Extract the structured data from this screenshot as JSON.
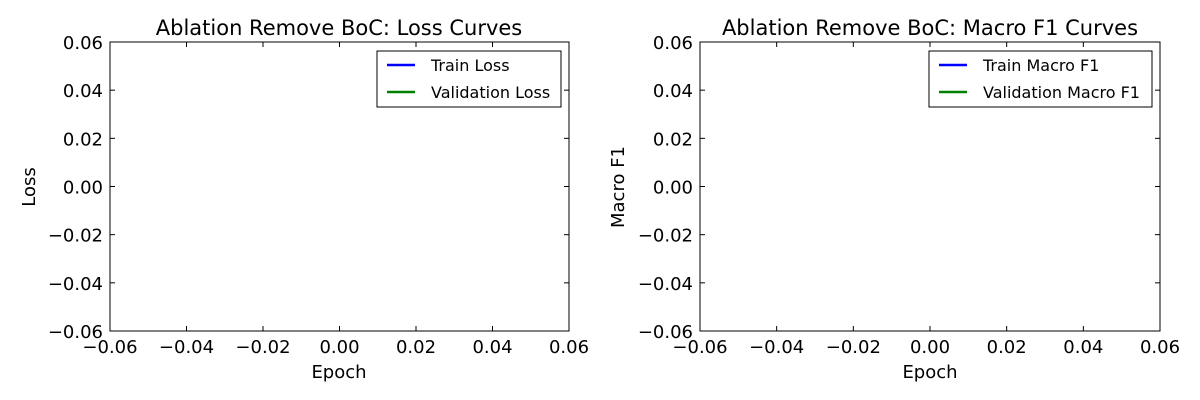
{
  "chart_data": [
    {
      "type": "line",
      "title": "Ablation Remove BoC: Loss Curves",
      "xlabel": "Epoch",
      "ylabel": "Loss",
      "xlim": [
        -0.06,
        0.06
      ],
      "ylim": [
        -0.06,
        0.06
      ],
      "x_ticks": [
        "−0.06",
        "−0.04",
        "−0.02",
        "0.00",
        "0.02",
        "0.04",
        "0.06"
      ],
      "y_ticks": [
        "−0.06",
        "−0.04",
        "−0.02",
        "0.00",
        "0.02",
        "0.04",
        "0.06"
      ],
      "grid": false,
      "legend_position": "upper right",
      "series": [
        {
          "name": "Train Loss",
          "color": "#0000ff",
          "x": [],
          "y": []
        },
        {
          "name": "Validation Loss",
          "color": "#008000",
          "x": [],
          "y": []
        }
      ]
    },
    {
      "type": "line",
      "title": "Ablation Remove BoC: Macro F1 Curves",
      "xlabel": "Epoch",
      "ylabel": "Macro F1",
      "xlim": [
        -0.06,
        0.06
      ],
      "ylim": [
        -0.06,
        0.06
      ],
      "x_ticks": [
        "−0.06",
        "−0.04",
        "−0.02",
        "0.00",
        "0.02",
        "0.04",
        "0.06"
      ],
      "y_ticks": [
        "−0.06",
        "−0.04",
        "−0.02",
        "0.00",
        "0.02",
        "0.04",
        "0.06"
      ],
      "grid": false,
      "legend_position": "upper right",
      "series": [
        {
          "name": "Train Macro F1",
          "color": "#0000ff",
          "x": [],
          "y": []
        },
        {
          "name": "Validation Macro F1",
          "color": "#008000",
          "x": [],
          "y": []
        }
      ]
    }
  ]
}
